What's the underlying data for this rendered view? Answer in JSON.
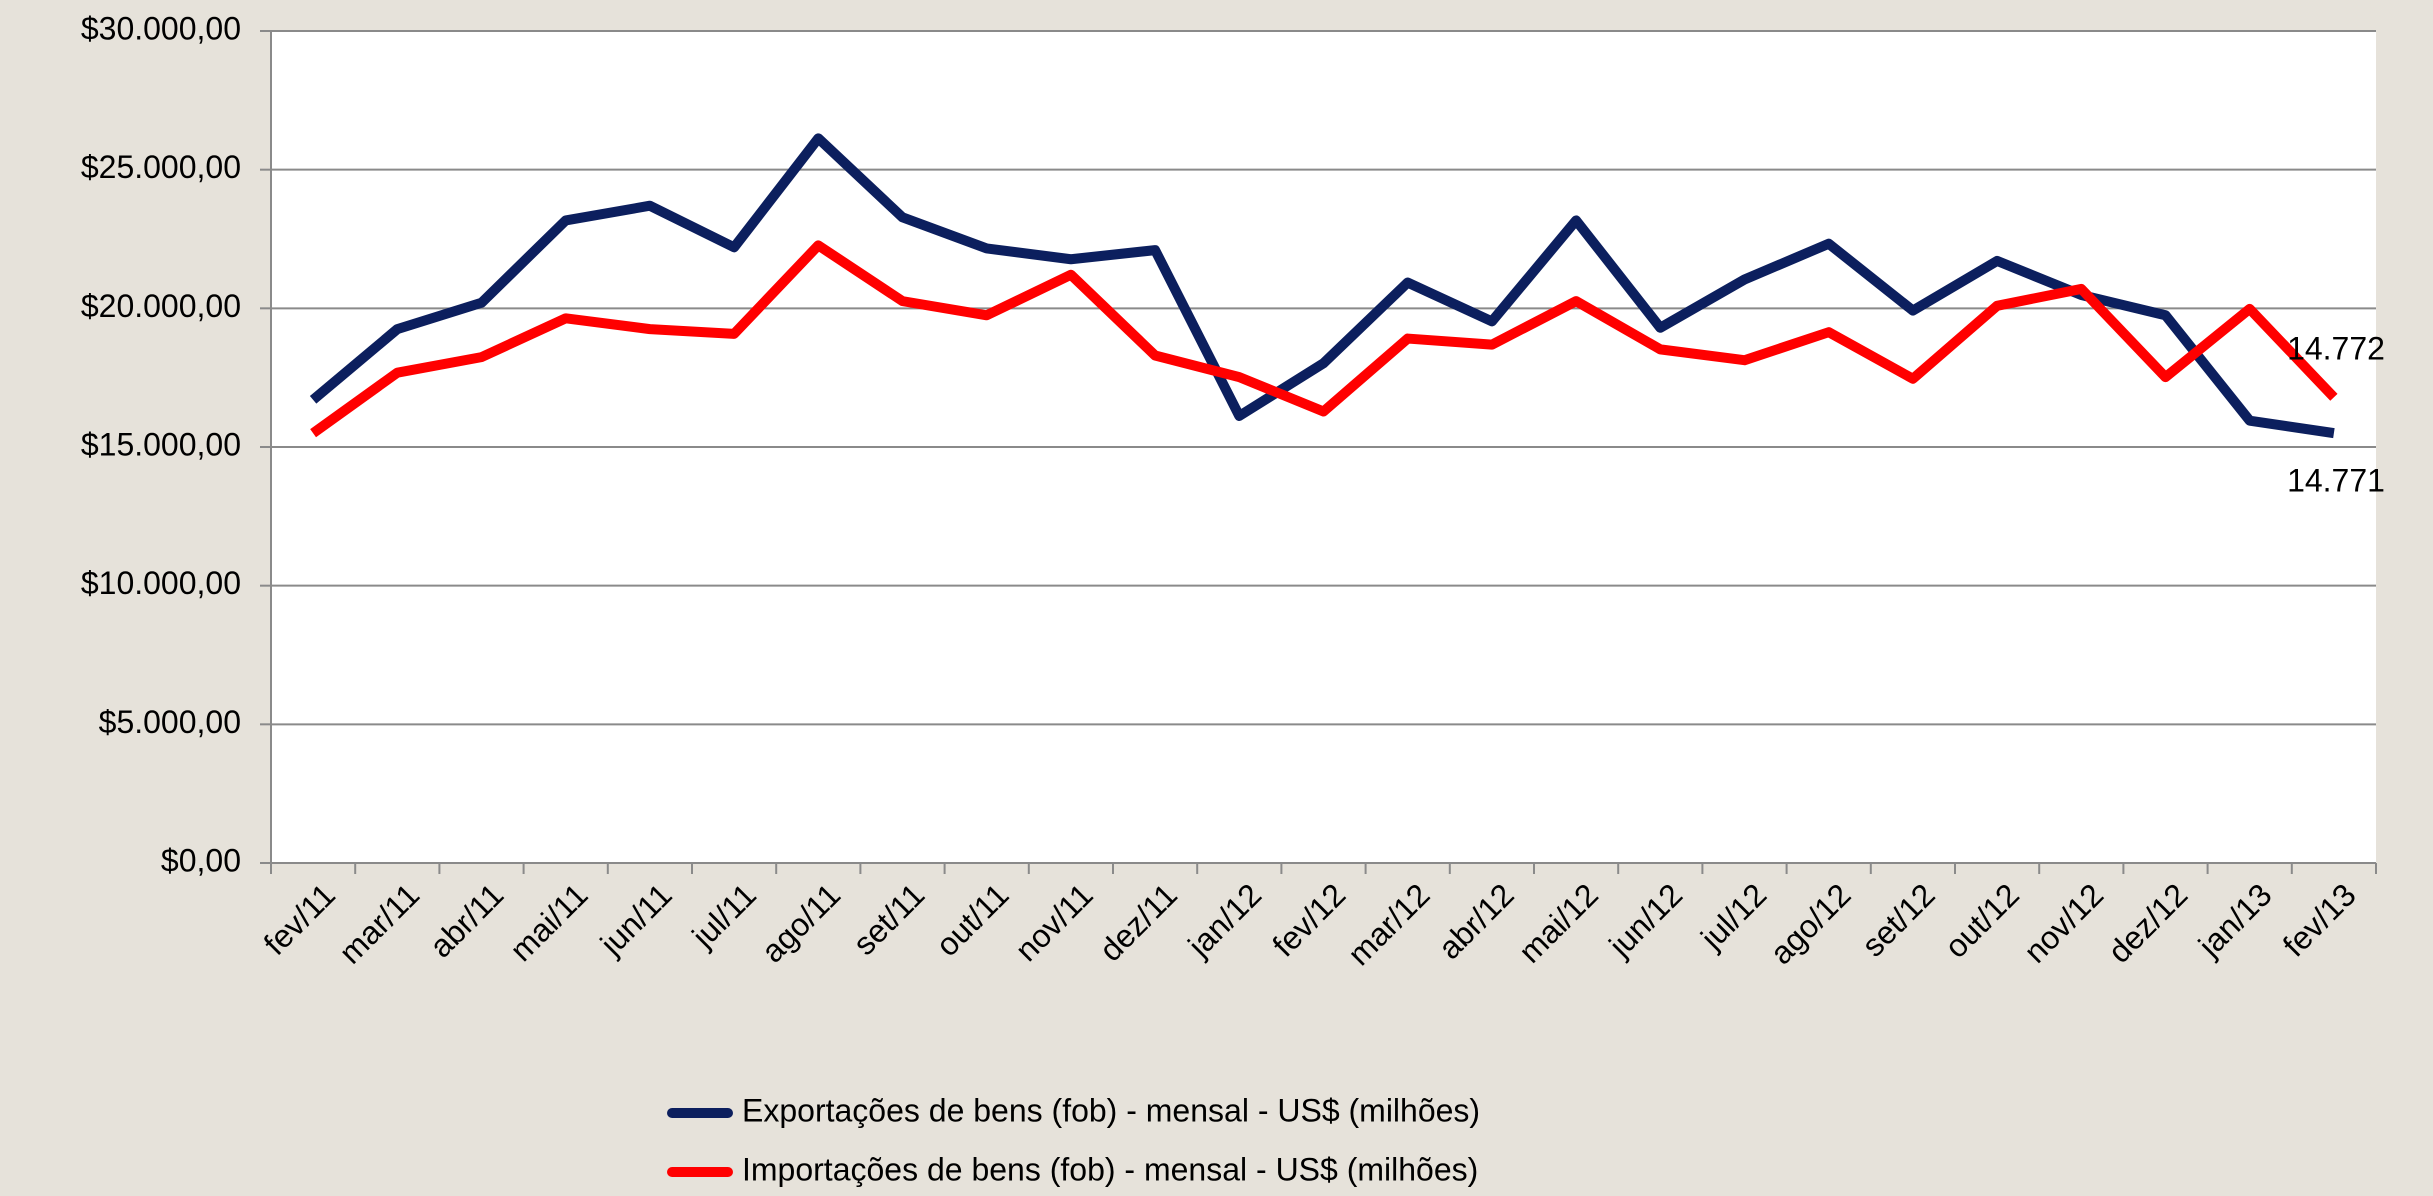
{
  "chart_data": {
    "type": "line",
    "categories": [
      "fev/11",
      "mar/11",
      "abr/11",
      "mai/11",
      "jun/11",
      "jul/11",
      "ago/11",
      "set/11",
      "out/11",
      "nov/11",
      "dez/11",
      "jan/12",
      "fev/12",
      "mar/12",
      "abr/12",
      "mai/12",
      "jun/12",
      "jul/12",
      "ago/12",
      "set/12",
      "out/12",
      "nov/12",
      "dez/12",
      "jan/13",
      "fev/13"
    ],
    "series": [
      {
        "name": "Exportações de bens (fob) - mensal - US$ (milhões)",
        "color": "#0c1f5e",
        "values": [
          16700,
          19250,
          20200,
          23170,
          23700,
          22200,
          26130,
          23280,
          22160,
          21770,
          22100,
          16120,
          18020,
          20930,
          19530,
          23170,
          19300,
          21040,
          22330,
          19920,
          21710,
          20480,
          19750,
          15950,
          15500
        ]
      },
      {
        "name": "Importações de bens (fob) - mensal - US$ (milhões)",
        "color": "#ff0000",
        "values": [
          15500,
          17680,
          18240,
          19640,
          19250,
          19080,
          22270,
          20260,
          19750,
          21210,
          18300,
          17520,
          16280,
          18910,
          18690,
          20260,
          18520,
          18130,
          19140,
          17460,
          20090,
          20700,
          17520,
          19980,
          16790
        ]
      }
    ],
    "annotations": [
      "14.772",
      "14.771"
    ],
    "ylim": [
      0,
      30000
    ],
    "yticks": [
      {
        "value": 0,
        "label": "$0,00"
      },
      {
        "value": 5000,
        "label": "$5.000,00"
      },
      {
        "value": 10000,
        "label": "$10.000,00"
      },
      {
        "value": 15000,
        "label": "$15.000,00"
      },
      {
        "value": 20000,
        "label": "$20.000,00"
      },
      {
        "value": 25000,
        "label": "$25.000,00"
      },
      {
        "value": 30000,
        "label": "$30.000,00"
      }
    ],
    "grid": true,
    "legend": "bottom"
  }
}
